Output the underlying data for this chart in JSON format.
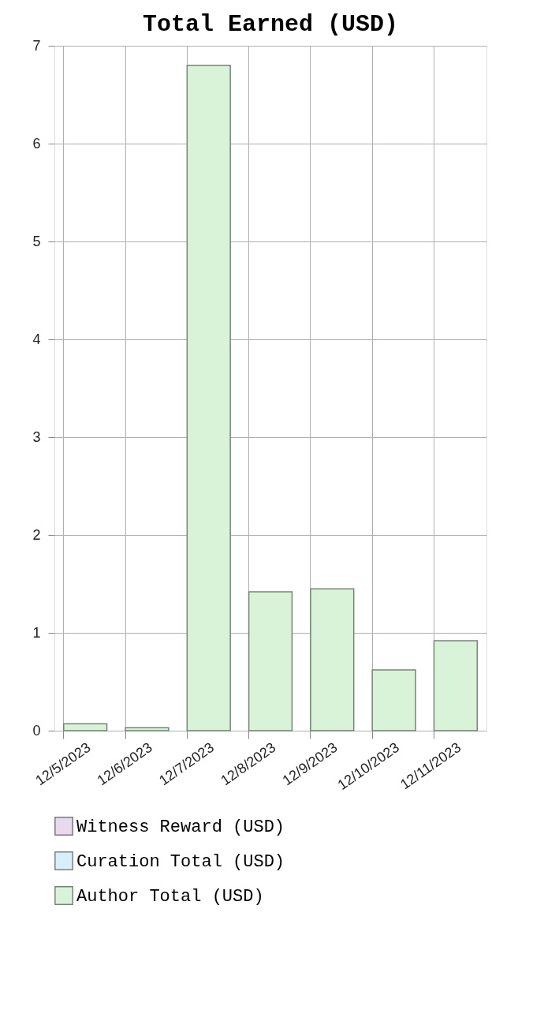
{
  "chart_data": {
    "type": "bar",
    "title": "Total Earned (USD)",
    "categories": [
      "12/5/2023",
      "12/6/2023",
      "12/7/2023",
      "12/8/2023",
      "12/9/2023",
      "12/10/2023",
      "12/11/2023"
    ],
    "series": [
      {
        "name": "Witness Reward (USD)",
        "color": "#e8d9ec",
        "values": [
          null,
          null,
          null,
          null,
          null,
          null,
          null
        ]
      },
      {
        "name": "Curation Total (USD)",
        "color": "#d9eef8",
        "values": [
          null,
          null,
          null,
          null,
          null,
          null,
          null
        ]
      },
      {
        "name": "Author Total (USD)",
        "color": "#d9f3d9",
        "values": [
          0.07,
          0.03,
          6.8,
          1.42,
          1.45,
          0.62,
          0.92
        ]
      }
    ],
    "ylim": [
      0,
      7
    ],
    "yticks": [
      0,
      1,
      2,
      3,
      4,
      5,
      6,
      7
    ],
    "grid": true,
    "legend": "bottom"
  }
}
